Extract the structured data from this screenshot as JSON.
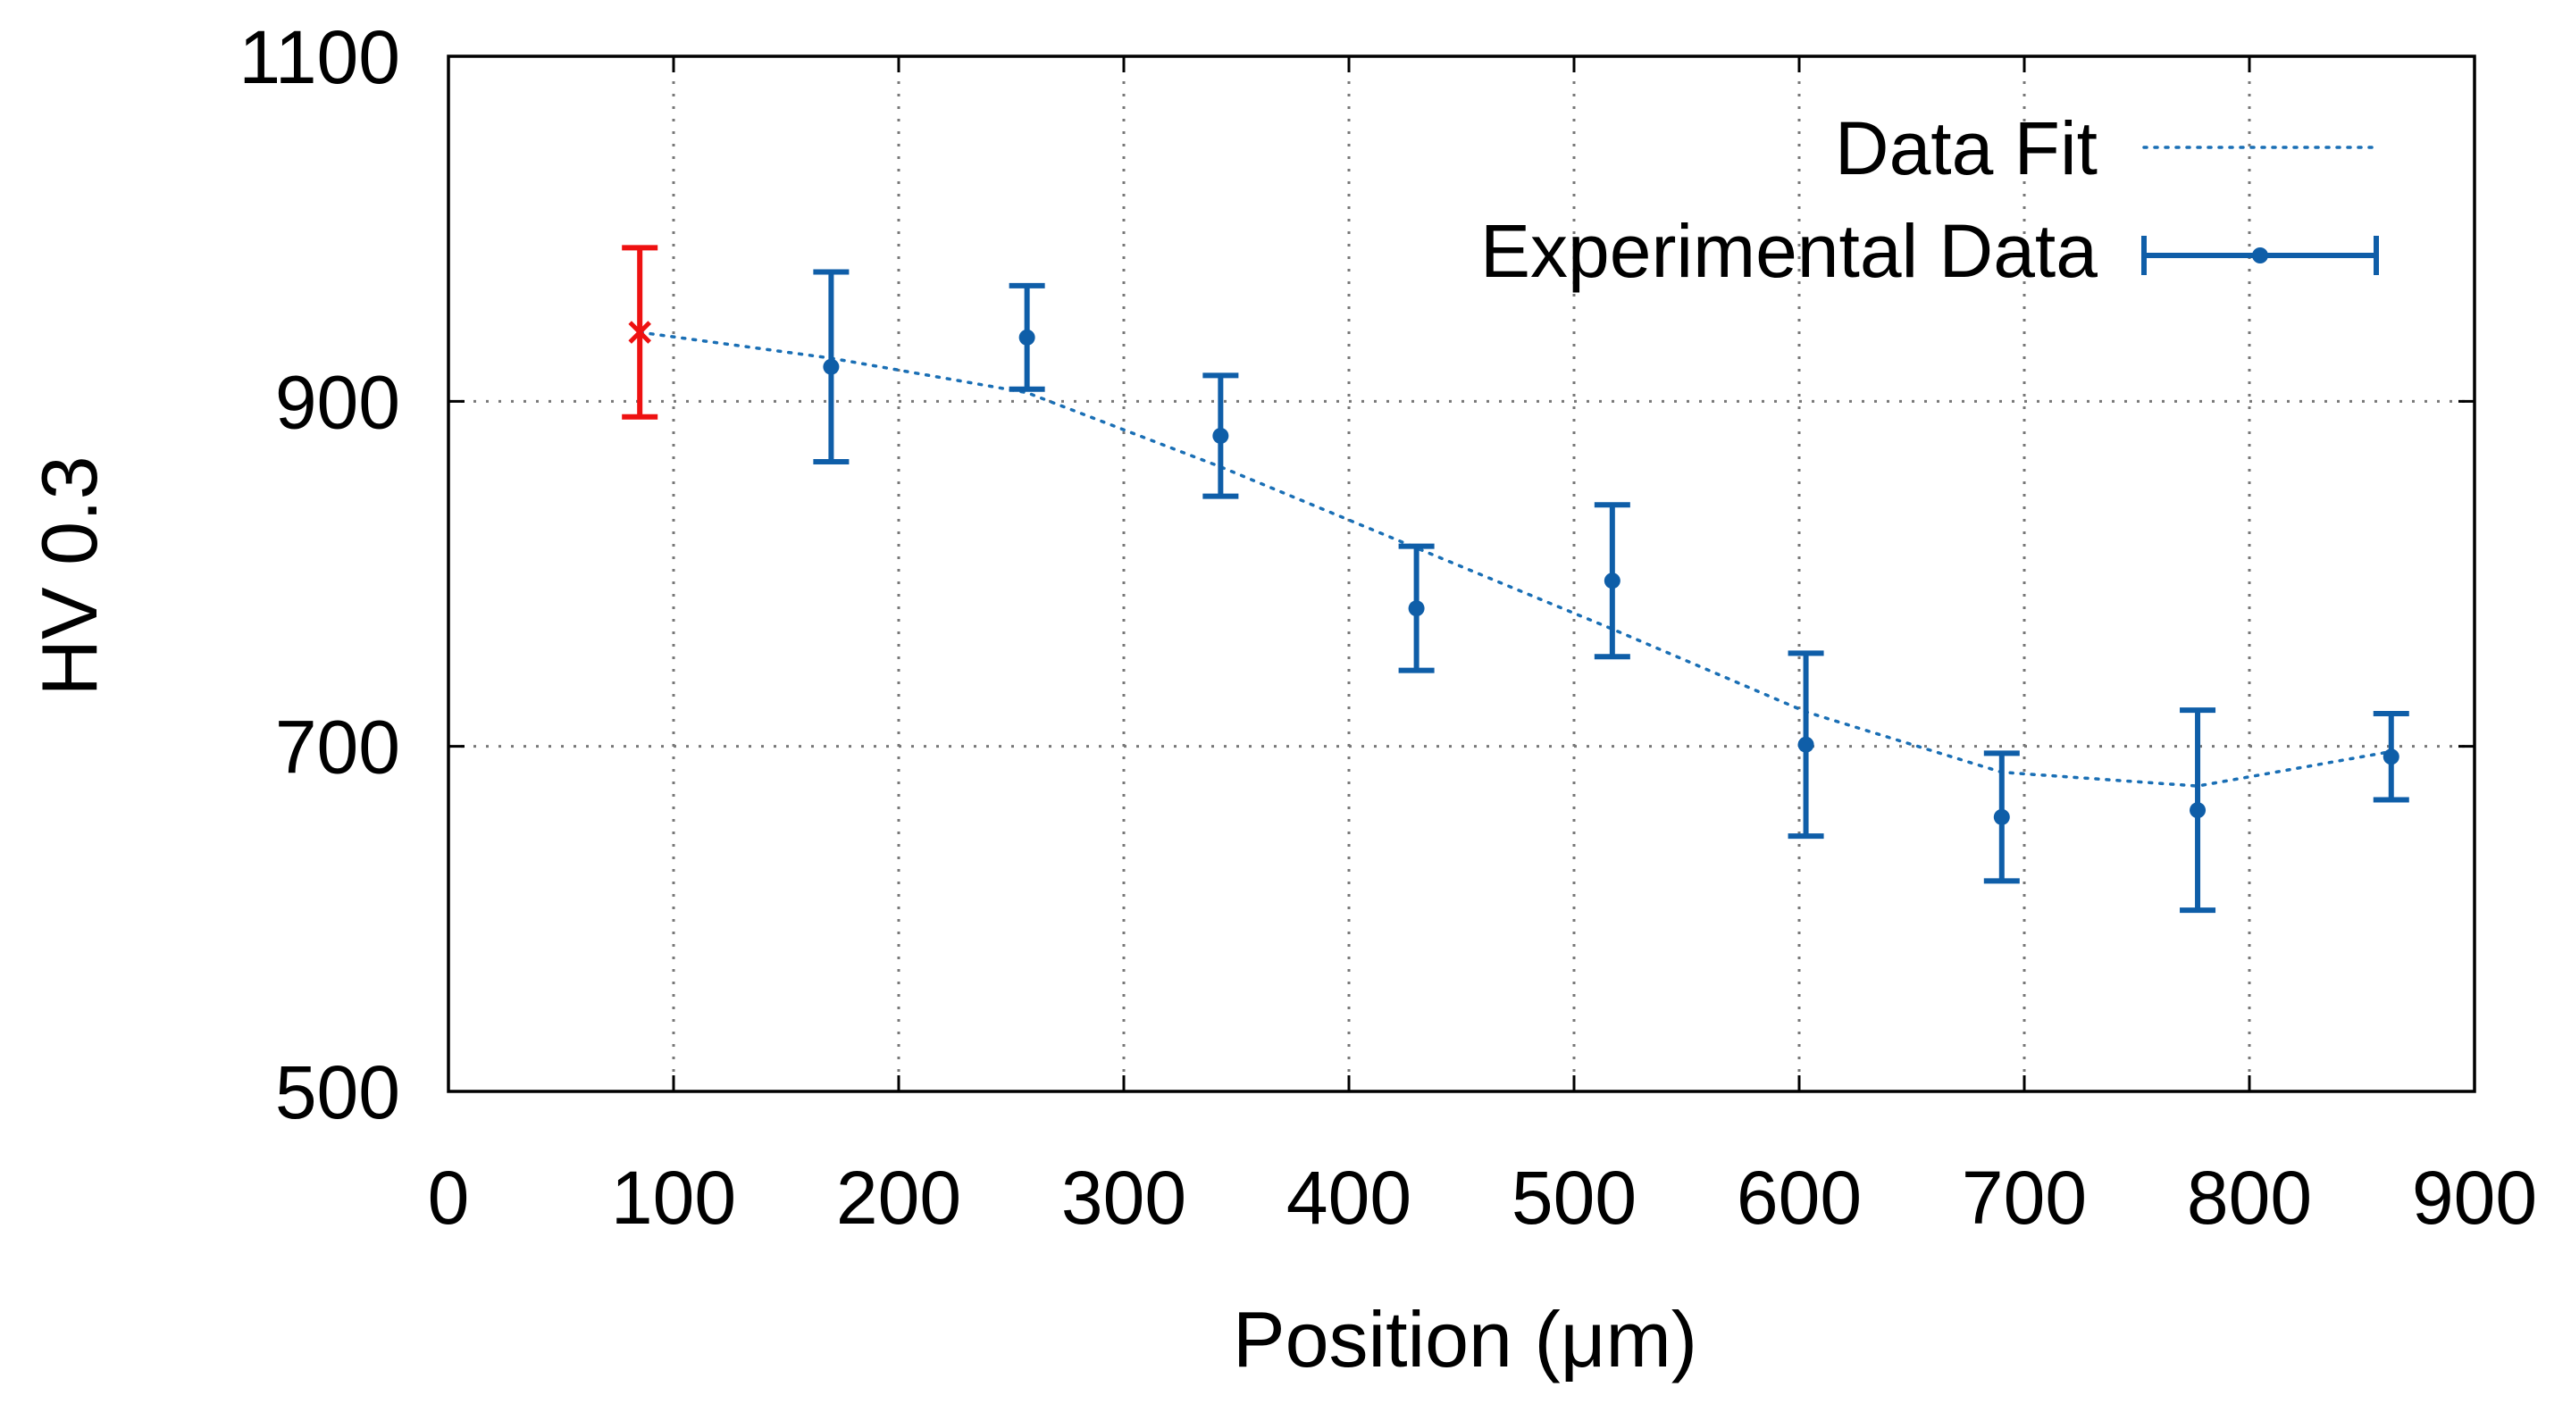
{
  "chart_data": {
    "type": "scatter",
    "title": "",
    "xlabel": "Position (μm)",
    "ylabel": "HV 0.3",
    "xlim": [
      0,
      900
    ],
    "ylim": [
      500,
      1100
    ],
    "x_ticks": [
      0,
      100,
      200,
      300,
      400,
      500,
      600,
      700,
      800,
      900
    ],
    "y_ticks": [
      500,
      700,
      900,
      1100
    ],
    "grid": true,
    "legend_position": "top-right",
    "series": [
      {
        "name": "Data Fit",
        "kind": "line",
        "style": "dotted",
        "color": "#1a6fb5",
        "x": [
          85,
          170,
          257,
          343,
          430,
          517,
          603,
          690,
          777,
          863
        ],
        "y": [
          940,
          925,
          905,
          862,
          815,
          768,
          720,
          685,
          677,
          697
        ]
      },
      {
        "name": "Experimental Data",
        "kind": "errorbar",
        "color": "#0f5ea8",
        "x": [
          170,
          257,
          343,
          430,
          517,
          603,
          690,
          777,
          863
        ],
        "y": [
          920,
          937,
          880,
          780,
          796,
          701,
          659,
          663,
          694
        ],
        "err": [
          55,
          30,
          35,
          36,
          44,
          53,
          37,
          58,
          25
        ]
      },
      {
        "kind": "errorbar",
        "marker": "x",
        "color": "#ee1111",
        "x": [
          85
        ],
        "y": [
          940
        ],
        "err": [
          49
        ]
      }
    ]
  }
}
